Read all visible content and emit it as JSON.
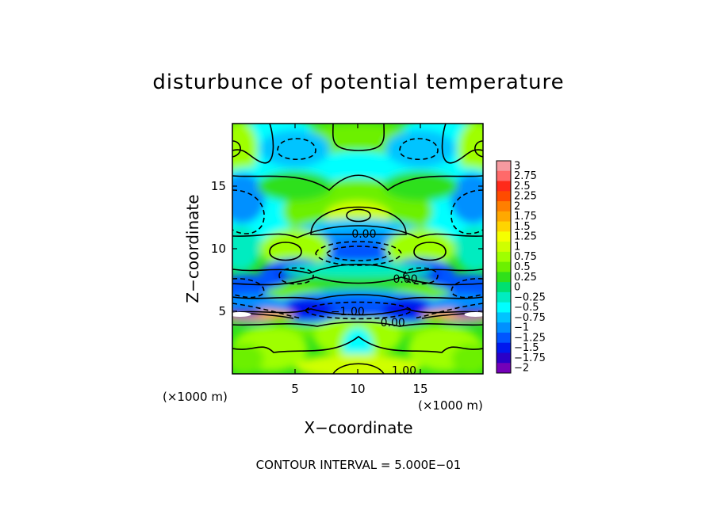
{
  "chart_data": {
    "type": "heatmap",
    "title": "disturbunce of potential temperature",
    "xlabel": "X−coordinate",
    "ylabel": "Z−coordinate",
    "x_unit_left": "(×1000 m)",
    "x_unit_right": "(×1000 m)",
    "footer": "CONTOUR INTERVAL = 5.000E−01",
    "xlim": [
      0,
      20
    ],
    "ylim": [
      0,
      20
    ],
    "x_ticks": [
      {
        "value": 5,
        "label": "5"
      },
      {
        "value": 10,
        "label": "10"
      },
      {
        "value": 15,
        "label": "15"
      }
    ],
    "y_ticks": [
      {
        "value": 5,
        "label": "5"
      },
      {
        "value": 10,
        "label": "10"
      },
      {
        "value": 15,
        "label": "15"
      }
    ],
    "contour_labels": [
      {
        "x": 10.5,
        "z": 11.2,
        "label": "0.00"
      },
      {
        "x": 13.8,
        "z": 7.6,
        "label": "0.00"
      },
      {
        "x": 9.2,
        "z": 5.0,
        "label": "−1.00"
      },
      {
        "x": 12.8,
        "z": 4.1,
        "label": "0.00"
      },
      {
        "x": 13.7,
        "z": 0.3,
        "label": "1.00"
      }
    ],
    "colorbar": {
      "levels": [
        {
          "value": 3,
          "label": "3",
          "color": "#f59aa0"
        },
        {
          "value": 2.75,
          "label": "2.75",
          "color": "#ff6a6a"
        },
        {
          "value": 2.5,
          "label": "2.5",
          "color": "#ff2a1a"
        },
        {
          "value": 2.25,
          "label": "2.25",
          "color": "#ff4b00"
        },
        {
          "value": 2,
          "label": "2",
          "color": "#ff7f00"
        },
        {
          "value": 1.75,
          "label": "1.75",
          "color": "#ffa800"
        },
        {
          "value": 1.5,
          "label": "1.5",
          "color": "#ffd400"
        },
        {
          "value": 1.25,
          "label": "1.25",
          "color": "#f5ff00"
        },
        {
          "value": 1,
          "label": "1",
          "color": "#cfff00"
        },
        {
          "value": 0.75,
          "label": "0.75",
          "color": "#9fff00"
        },
        {
          "value": 0.5,
          "label": "0.5",
          "color": "#6cf000"
        },
        {
          "value": 0.25,
          "label": "0.25",
          "color": "#2fe01a"
        },
        {
          "value": 0,
          "label": "0",
          "color": "#00e070"
        },
        {
          "value": -0.25,
          "label": "−0.25",
          "color": "#00ecc0"
        },
        {
          "value": -0.5,
          "label": "−0.5",
          "color": "#00ffff"
        },
        {
          "value": -0.75,
          "label": "−0.75",
          "color": "#00c4ff"
        },
        {
          "value": -1,
          "label": "−1",
          "color": "#0090ff"
        },
        {
          "value": -1.25,
          "label": "−1.25",
          "color": "#0055ff"
        },
        {
          "value": -1.5,
          "label": "−1.5",
          "color": "#0018ee"
        },
        {
          "value": -1.75,
          "label": "−1.75",
          "color": "#2a00c8"
        },
        {
          "value": -2,
          "label": "−2",
          "color": "#7400b8"
        }
      ]
    }
  }
}
